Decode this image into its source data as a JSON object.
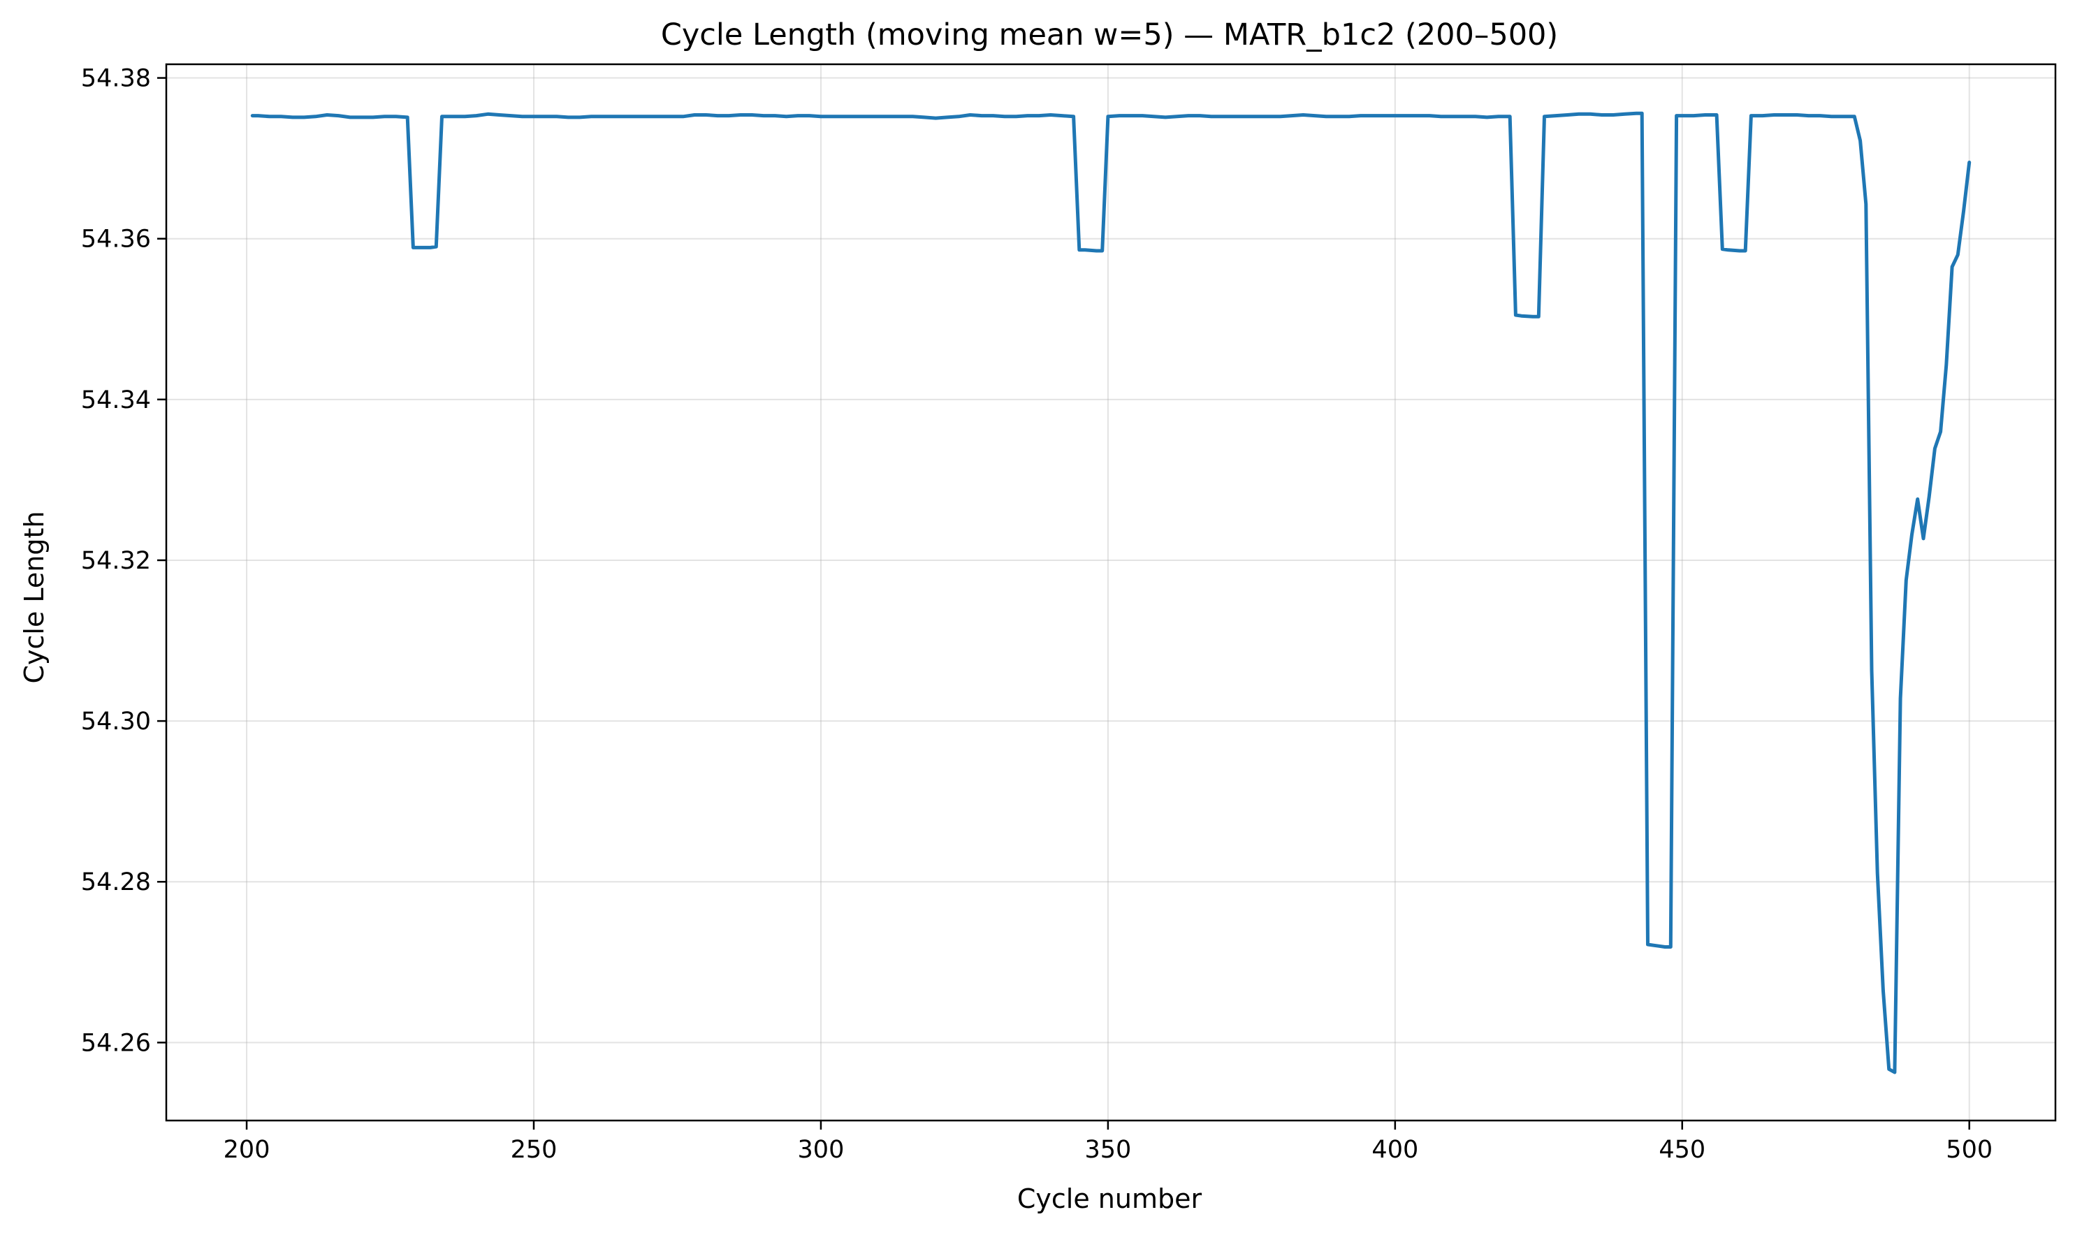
{
  "chart_data": {
    "type": "line",
    "title": "Cycle Length (moving mean w=5) — MATR_b1c2 (200–500)",
    "xlabel": "Cycle number",
    "ylabel": "Cycle Length",
    "xlim": [
      186,
      515
    ],
    "ylim": [
      54.2503,
      54.3817
    ],
    "xticks": [
      200,
      250,
      300,
      350,
      400,
      450,
      500
    ],
    "yticks": [
      54.26,
      54.28,
      54.3,
      54.32,
      54.34,
      54.36,
      54.38
    ],
    "xtick_labels": [
      "200",
      "250",
      "300",
      "350",
      "400",
      "450",
      "500"
    ],
    "ytick_labels": [
      "54.26",
      "54.28",
      "54.30",
      "54.32",
      "54.34",
      "54.36",
      "54.38"
    ],
    "grid": true,
    "legend": "none",
    "line_color": "#1f77b4",
    "series": [
      {
        "x": [
          201,
          202,
          204,
          206,
          208,
          210,
          212,
          214,
          216,
          218,
          220,
          222,
          224,
          226,
          228,
          229,
          230,
          232,
          233,
          234,
          236,
          238,
          240,
          242,
          244,
          246,
          248,
          250,
          252,
          254,
          256,
          258,
          260,
          262,
          264,
          266,
          268,
          270,
          272,
          274,
          276,
          278,
          280,
          282,
          284,
          286,
          288,
          290,
          292,
          294,
          296,
          298,
          300,
          302,
          304,
          306,
          308,
          310,
          312,
          314,
          316,
          318,
          320,
          322,
          324,
          326,
          328,
          330,
          332,
          334,
          336,
          338,
          340,
          342,
          344,
          345,
          346,
          348,
          349,
          350,
          352,
          354,
          356,
          358,
          360,
          362,
          364,
          366,
          368,
          370,
          372,
          374,
          376,
          378,
          380,
          382,
          384,
          386,
          388,
          390,
          392,
          394,
          396,
          398,
          400,
          402,
          404,
          406,
          408,
          410,
          412,
          414,
          416,
          418,
          420,
          421,
          422,
          424,
          425,
          426,
          428,
          430,
          432,
          434,
          436,
          438,
          440,
          442,
          443,
          444,
          445,
          446,
          447,
          448,
          449,
          450,
          452,
          454,
          456,
          457,
          458,
          460,
          461,
          462,
          464,
          466,
          468,
          470,
          472,
          474,
          476,
          478,
          480,
          481,
          482,
          483,
          484,
          485,
          486,
          487,
          488,
          489,
          490,
          491,
          492,
          493,
          494,
          495,
          496,
          497,
          498,
          499,
          500
        ],
        "y": [
          54.3753,
          54.3753,
          54.3752,
          54.3752,
          54.3751,
          54.3751,
          54.3752,
          54.3754,
          54.3753,
          54.3751,
          54.3751,
          54.3751,
          54.3752,
          54.3752,
          54.3751,
          54.3589,
          54.3589,
          54.3589,
          54.359,
          54.3752,
          54.3752,
          54.3752,
          54.3753,
          54.3755,
          54.3754,
          54.3753,
          54.3752,
          54.3752,
          54.3752,
          54.3752,
          54.3751,
          54.3751,
          54.3752,
          54.3752,
          54.3752,
          54.3752,
          54.3752,
          54.3752,
          54.3752,
          54.3752,
          54.3752,
          54.3754,
          54.3754,
          54.3753,
          54.3753,
          54.3754,
          54.3754,
          54.3753,
          54.3753,
          54.3752,
          54.3753,
          54.3753,
          54.3752,
          54.3752,
          54.3752,
          54.3752,
          54.3752,
          54.3752,
          54.3752,
          54.3752,
          54.3752,
          54.3751,
          54.375,
          54.3751,
          54.3752,
          54.3754,
          54.3753,
          54.3753,
          54.3752,
          54.3752,
          54.3753,
          54.3753,
          54.3754,
          54.3753,
          54.3752,
          54.3586,
          54.3586,
          54.3585,
          54.3585,
          54.3752,
          54.3753,
          54.3753,
          54.3753,
          54.3752,
          54.3751,
          54.3752,
          54.3753,
          54.3753,
          54.3752,
          54.3752,
          54.3752,
          54.3752,
          54.3752,
          54.3752,
          54.3752,
          54.3753,
          54.3754,
          54.3753,
          54.3752,
          54.3752,
          54.3752,
          54.3753,
          54.3753,
          54.3753,
          54.3753,
          54.3753,
          54.3753,
          54.3753,
          54.3752,
          54.3752,
          54.3752,
          54.3752,
          54.3751,
          54.3752,
          54.3752,
          54.3505,
          54.3504,
          54.3503,
          54.3503,
          54.3752,
          54.3753,
          54.3754,
          54.3755,
          54.3755,
          54.3754,
          54.3754,
          54.3755,
          54.3756,
          54.3756,
          54.2722,
          54.2721,
          54.272,
          54.2719,
          54.2719,
          54.3753,
          54.3753,
          54.3753,
          54.3754,
          54.3754,
          54.3587,
          54.3586,
          54.3585,
          54.3585,
          54.3753,
          54.3753,
          54.3754,
          54.3754,
          54.3754,
          54.3753,
          54.3753,
          54.3752,
          54.3752,
          54.3752,
          54.3722,
          54.3643,
          54.3063,
          54.2811,
          54.2665,
          54.2567,
          54.2563,
          54.3028,
          54.3175,
          54.3232,
          54.3276,
          54.3227,
          54.3279,
          54.3339,
          54.336,
          54.3443,
          54.3565,
          54.358,
          54.3634,
          54.3695
        ]
      }
    ]
  }
}
